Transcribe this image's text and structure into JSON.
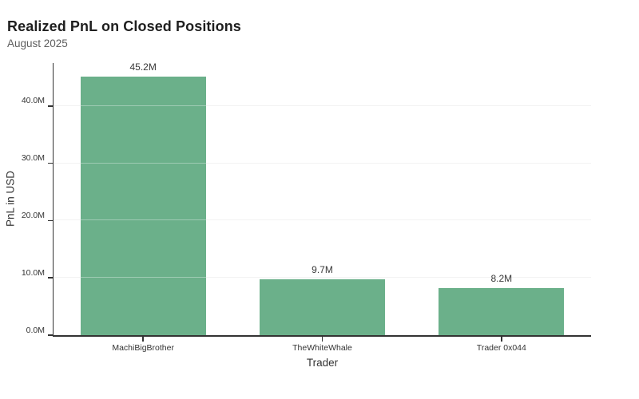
{
  "page": {
    "background": "#ffffff"
  },
  "header": {
    "title": "Realized PnL on Closed Positions",
    "subtitle": "August 2025"
  },
  "chart_data": {
    "type": "bar",
    "title": "Realized PnL on Closed Positions",
    "subtitle": "August 2025",
    "xlabel": "Trader",
    "ylabel": "PnL in USD",
    "categories": [
      "MachiBigBrother",
      "TheWhiteWhale",
      "Trader 0x044"
    ],
    "values": [
      45.2,
      9.7,
      8.2
    ],
    "value_unit": "millions USD",
    "value_labels": [
      "45.2M",
      "9.7M",
      "8.2M"
    ],
    "ytick_values": [
      0,
      10,
      20,
      30,
      40
    ],
    "ytick_labels": [
      "0.0M",
      "10.0M",
      "20.0M",
      "30.0M",
      "40.0M"
    ],
    "ylim": [
      0,
      47.5
    ],
    "grid": true,
    "legend": false,
    "colors": {
      "bar": "#6bb08a",
      "axis": "#333333",
      "grid": "#ebebeb",
      "grid_over_bar": "rgba(255,255,255,0.35)",
      "title": "#1f1f1f",
      "subtitle": "#5e5e5e",
      "tick_text": "#333333",
      "value_label": "#383838"
    },
    "bar_fraction_of_slot": 0.7
  }
}
